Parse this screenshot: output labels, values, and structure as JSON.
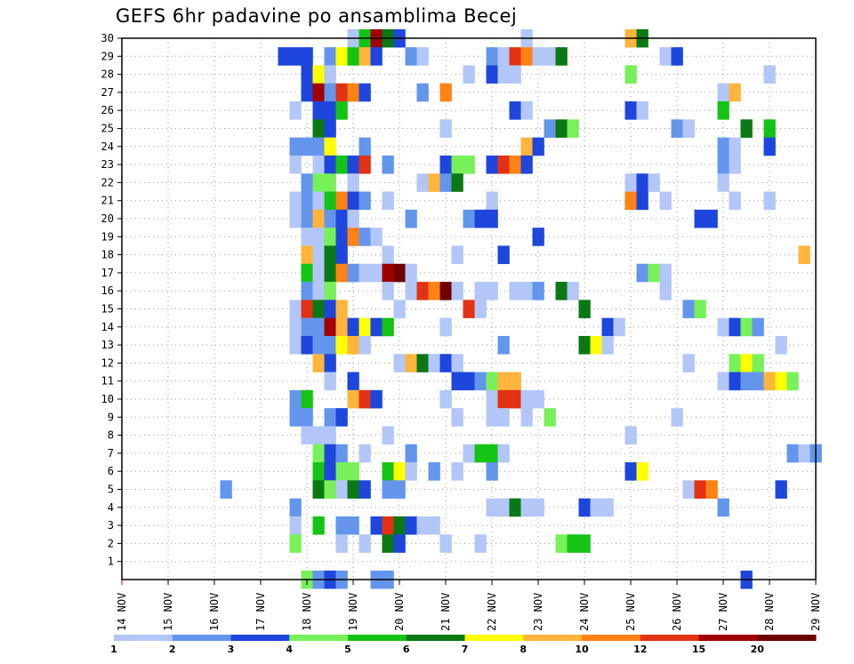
{
  "chart_data": {
    "type": "heatmap",
    "title": "GEFS 6hr padavine po ansamblima Becej",
    "x_tick_labels": [
      "14 NOV",
      "15 NOV",
      "16 NOV",
      "17 NOV",
      "18 NOV",
      "19 NOV",
      "20 NOV",
      "21 NOV",
      "22 NOV",
      "23 NOV",
      "24 NOV",
      "25 NOV",
      "26 NOV",
      "27 NOV",
      "28 NOV",
      "29 NOV"
    ],
    "y_tick_labels": [
      "1",
      "2",
      "3",
      "4",
      "5",
      "6",
      "7",
      "8",
      "9",
      "10",
      "11",
      "12",
      "13",
      "14",
      "15",
      "16",
      "17",
      "18",
      "19",
      "20",
      "21",
      "22",
      "23",
      "24",
      "25",
      "26",
      "27",
      "28",
      "29",
      "30"
    ],
    "x_range_days": [
      14,
      29
    ],
    "y_range_members": [
      0,
      30
    ],
    "x_step_hours": 6,
    "grid": "dotted",
    "colorbar": {
      "labels": [
        "1",
        "2",
        "3",
        "4",
        "5",
        "6",
        "7",
        "8",
        "10",
        "12",
        "15",
        "20"
      ],
      "colors": [
        "#b3c6f8",
        "#6495ed",
        "#1e46dc",
        "#78f05a",
        "#14c314",
        "#0a7814",
        "#ffff00",
        "#ffb43c",
        "#ff8214",
        "#e13214",
        "#a00000",
        "#6e0000"
      ]
    },
    "cells": [
      [
        30,
        19.0,
        0
      ],
      [
        30,
        19.25,
        4
      ],
      [
        30,
        19.5,
        10
      ],
      [
        30,
        19.75,
        5
      ],
      [
        30,
        20.0,
        2
      ],
      [
        30,
        22.75,
        0
      ],
      [
        30,
        25.0,
        7
      ],
      [
        30,
        25.25,
        5
      ],
      [
        29,
        17.5,
        2
      ],
      [
        29,
        17.75,
        2
      ],
      [
        29,
        18.0,
        2
      ],
      [
        29,
        18.5,
        1
      ],
      [
        29,
        18.75,
        6
      ],
      [
        29,
        19.0,
        4
      ],
      [
        29,
        19.25,
        7
      ],
      [
        29,
        19.5,
        2
      ],
      [
        29,
        20.25,
        1
      ],
      [
        29,
        20.5,
        0
      ],
      [
        29,
        22.0,
        1
      ],
      [
        29,
        22.25,
        0
      ],
      [
        29,
        22.5,
        9
      ],
      [
        29,
        22.75,
        8
      ],
      [
        29,
        23.0,
        0
      ],
      [
        29,
        23.25,
        0
      ],
      [
        29,
        23.5,
        5
      ],
      [
        29,
        25.75,
        0
      ],
      [
        29,
        26.0,
        2
      ],
      [
        28,
        18.0,
        2
      ],
      [
        28,
        18.25,
        6
      ],
      [
        28,
        18.5,
        0
      ],
      [
        28,
        21.5,
        0
      ],
      [
        28,
        22.0,
        2
      ],
      [
        28,
        22.25,
        0
      ],
      [
        28,
        22.5,
        0
      ],
      [
        28,
        25.0,
        3
      ],
      [
        28,
        28.0,
        0
      ],
      [
        27,
        18.0,
        2
      ],
      [
        27,
        18.25,
        10
      ],
      [
        27,
        18.5,
        1
      ],
      [
        27,
        18.75,
        9
      ],
      [
        27,
        19.0,
        8
      ],
      [
        27,
        19.25,
        2
      ],
      [
        27,
        20.5,
        1
      ],
      [
        27,
        21.0,
        8
      ],
      [
        27,
        27.0,
        0
      ],
      [
        27,
        27.25,
        7
      ],
      [
        26,
        17.75,
        0
      ],
      [
        26,
        18.25,
        2
      ],
      [
        26,
        18.5,
        2
      ],
      [
        26,
        18.75,
        4
      ],
      [
        26,
        22.5,
        2
      ],
      [
        26,
        22.75,
        0
      ],
      [
        26,
        25.0,
        2
      ],
      [
        26,
        25.25,
        0
      ],
      [
        26,
        27.0,
        4
      ],
      [
        25,
        18.25,
        5
      ],
      [
        25,
        18.5,
        2
      ],
      [
        25,
        21.0,
        0
      ],
      [
        25,
        23.25,
        1
      ],
      [
        25,
        23.5,
        5
      ],
      [
        25,
        23.75,
        3
      ],
      [
        25,
        26.0,
        1
      ],
      [
        25,
        26.25,
        0
      ],
      [
        25,
        27.5,
        5
      ],
      [
        25,
        28.0,
        4
      ],
      [
        24,
        17.75,
        1
      ],
      [
        24,
        18.0,
        1
      ],
      [
        24,
        18.25,
        1
      ],
      [
        24,
        18.5,
        6
      ],
      [
        24,
        19.25,
        1
      ],
      [
        24,
        22.75,
        7
      ],
      [
        24,
        23.0,
        2
      ],
      [
        24,
        27.0,
        1
      ],
      [
        24,
        27.25,
        0
      ],
      [
        24,
        28.0,
        2
      ],
      [
        23,
        17.75,
        0
      ],
      [
        23,
        18.25,
        0
      ],
      [
        23,
        18.5,
        2
      ],
      [
        23,
        18.75,
        4
      ],
      [
        23,
        19.0,
        2
      ],
      [
        23,
        19.25,
        9
      ],
      [
        23,
        19.75,
        1
      ],
      [
        23,
        21.0,
        2
      ],
      [
        23,
        21.25,
        3
      ],
      [
        23,
        21.5,
        3
      ],
      [
        23,
        22.0,
        2
      ],
      [
        23,
        22.25,
        9
      ],
      [
        23,
        22.5,
        8
      ],
      [
        23,
        22.75,
        2
      ],
      [
        23,
        27.0,
        1
      ],
      [
        23,
        27.25,
        0
      ],
      [
        22,
        18.0,
        1
      ],
      [
        22,
        18.25,
        3
      ],
      [
        22,
        18.5,
        3
      ],
      [
        22,
        19.0,
        0
      ],
      [
        22,
        20.5,
        0
      ],
      [
        22,
        20.75,
        7
      ],
      [
        22,
        21.0,
        1
      ],
      [
        22,
        21.25,
        5
      ],
      [
        22,
        25.0,
        0
      ],
      [
        22,
        25.25,
        2
      ],
      [
        22,
        25.5,
        0
      ],
      [
        22,
        27.0,
        0
      ],
      [
        21,
        17.75,
        0
      ],
      [
        21,
        18.0,
        1
      ],
      [
        21,
        18.25,
        0
      ],
      [
        21,
        18.5,
        4
      ],
      [
        21,
        18.75,
        8
      ],
      [
        21,
        19.0,
        2
      ],
      [
        21,
        19.25,
        1
      ],
      [
        21,
        19.75,
        0
      ],
      [
        21,
        22.0,
        0
      ],
      [
        21,
        25.0,
        8
      ],
      [
        21,
        25.25,
        2
      ],
      [
        21,
        25.75,
        0
      ],
      [
        21,
        27.25,
        0
      ],
      [
        21,
        28.0,
        0
      ],
      [
        20,
        17.75,
        0
      ],
      [
        20,
        18.0,
        1
      ],
      [
        20,
        18.25,
        7
      ],
      [
        20,
        18.5,
        1
      ],
      [
        20,
        18.75,
        2
      ],
      [
        20,
        19.0,
        0
      ],
      [
        20,
        20.25,
        1
      ],
      [
        20,
        21.5,
        1
      ],
      [
        20,
        21.75,
        2
      ],
      [
        20,
        22.0,
        2
      ],
      [
        20,
        26.5,
        2
      ],
      [
        20,
        26.75,
        2
      ],
      [
        19,
        18.0,
        0
      ],
      [
        19,
        18.25,
        0
      ],
      [
        19,
        18.5,
        3
      ],
      [
        19,
        18.75,
        2
      ],
      [
        19,
        19.0,
        8
      ],
      [
        19,
        19.25,
        1
      ],
      [
        19,
        19.5,
        0
      ],
      [
        19,
        23.0,
        2
      ],
      [
        18,
        18.0,
        7
      ],
      [
        18,
        18.25,
        0
      ],
      [
        18,
        18.5,
        5
      ],
      [
        18,
        18.75,
        2
      ],
      [
        18,
        19.75,
        0
      ],
      [
        18,
        21.25,
        0
      ],
      [
        18,
        22.25,
        2
      ],
      [
        18,
        28.75,
        7
      ],
      [
        17,
        18.0,
        4
      ],
      [
        17,
        18.25,
        0
      ],
      [
        17,
        18.5,
        5
      ],
      [
        17,
        18.75,
        8
      ],
      [
        17,
        19.0,
        1
      ],
      [
        17,
        19.25,
        0
      ],
      [
        17,
        19.5,
        0
      ],
      [
        17,
        19.75,
        10
      ],
      [
        17,
        20.0,
        11
      ],
      [
        17,
        20.25,
        0
      ],
      [
        17,
        25.25,
        1
      ],
      [
        17,
        25.5,
        3
      ],
      [
        17,
        25.75,
        0
      ],
      [
        16,
        18.0,
        1
      ],
      [
        16,
        18.25,
        0
      ],
      [
        16,
        18.5,
        3
      ],
      [
        16,
        19.75,
        0
      ],
      [
        16,
        20.25,
        0
      ],
      [
        16,
        20.5,
        9
      ],
      [
        16,
        20.75,
        8
      ],
      [
        16,
        21.0,
        11
      ],
      [
        16,
        21.25,
        0
      ],
      [
        16,
        21.75,
        0
      ],
      [
        16,
        22.0,
        0
      ],
      [
        16,
        22.5,
        0
      ],
      [
        16,
        22.75,
        0
      ],
      [
        16,
        23.0,
        1
      ],
      [
        16,
        23.5,
        5
      ],
      [
        16,
        23.75,
        0
      ],
      [
        16,
        25.75,
        0
      ],
      [
        15,
        17.75,
        0
      ],
      [
        15,
        18.0,
        9
      ],
      [
        15,
        18.25,
        5
      ],
      [
        15,
        18.5,
        2
      ],
      [
        15,
        18.75,
        7
      ],
      [
        15,
        20.0,
        0
      ],
      [
        15,
        21.5,
        9
      ],
      [
        15,
        21.75,
        0
      ],
      [
        15,
        24.0,
        5
      ],
      [
        15,
        26.25,
        1
      ],
      [
        15,
        26.5,
        3
      ],
      [
        14,
        17.75,
        0
      ],
      [
        14,
        18.0,
        1
      ],
      [
        14,
        18.25,
        1
      ],
      [
        14,
        18.5,
        10
      ],
      [
        14,
        18.75,
        7
      ],
      [
        14,
        19.0,
        2
      ],
      [
        14,
        19.25,
        6
      ],
      [
        14,
        19.5,
        2
      ],
      [
        14,
        19.75,
        4
      ],
      [
        14,
        21.0,
        0
      ],
      [
        14,
        24.5,
        2
      ],
      [
        14,
        24.75,
        0
      ],
      [
        14,
        27.0,
        0
      ],
      [
        14,
        27.25,
        2
      ],
      [
        14,
        27.5,
        3
      ],
      [
        14,
        27.75,
        1
      ],
      [
        13,
        17.75,
        0
      ],
      [
        13,
        18.0,
        2
      ],
      [
        13,
        18.25,
        1
      ],
      [
        13,
        18.5,
        1
      ],
      [
        13,
        18.75,
        6
      ],
      [
        13,
        19.0,
        7
      ],
      [
        13,
        19.25,
        0
      ],
      [
        13,
        22.25,
        1
      ],
      [
        13,
        24.0,
        5
      ],
      [
        13,
        24.25,
        6
      ],
      [
        13,
        24.5,
        0
      ],
      [
        13,
        28.25,
        0
      ],
      [
        12,
        18.25,
        7
      ],
      [
        12,
        18.5,
        2
      ],
      [
        12,
        20.0,
        0
      ],
      [
        12,
        20.25,
        7
      ],
      [
        12,
        20.5,
        5
      ],
      [
        12,
        20.75,
        0
      ],
      [
        12,
        21.0,
        2
      ],
      [
        12,
        21.25,
        0
      ],
      [
        12,
        26.25,
        0
      ],
      [
        12,
        27.25,
        3
      ],
      [
        12,
        27.5,
        6
      ],
      [
        12,
        27.75,
        3
      ],
      [
        11,
        18.5,
        0
      ],
      [
        11,
        19.0,
        2
      ],
      [
        11,
        21.25,
        2
      ],
      [
        11,
        21.5,
        2
      ],
      [
        11,
        21.75,
        1
      ],
      [
        11,
        22.0,
        3
      ],
      [
        11,
        22.25,
        7
      ],
      [
        11,
        22.5,
        7
      ],
      [
        11,
        27.0,
        0
      ],
      [
        11,
        27.25,
        2
      ],
      [
        11,
        27.5,
        1
      ],
      [
        11,
        27.75,
        1
      ],
      [
        11,
        28.0,
        7
      ],
      [
        11,
        28.25,
        6
      ],
      [
        11,
        28.5,
        3
      ],
      [
        10,
        17.75,
        1
      ],
      [
        10,
        18.0,
        4
      ],
      [
        10,
        19.0,
        7
      ],
      [
        10,
        19.25,
        9
      ],
      [
        10,
        19.5,
        2
      ],
      [
        10,
        21.0,
        0
      ],
      [
        10,
        22.0,
        0
      ],
      [
        10,
        22.25,
        9
      ],
      [
        10,
        22.5,
        9
      ],
      [
        10,
        22.75,
        0
      ],
      [
        10,
        23.0,
        0
      ],
      [
        9,
        17.75,
        1
      ],
      [
        9,
        18.0,
        1
      ],
      [
        9,
        18.5,
        1
      ],
      [
        9,
        18.75,
        2
      ],
      [
        9,
        21.25,
        0
      ],
      [
        9,
        22.0,
        0
      ],
      [
        9,
        22.25,
        0
      ],
      [
        9,
        22.75,
        0
      ],
      [
        9,
        23.25,
        3
      ],
      [
        9,
        26.0,
        0
      ],
      [
        8,
        18.0,
        0
      ],
      [
        8,
        18.25,
        0
      ],
      [
        8,
        18.5,
        0
      ],
      [
        8,
        19.75,
        0
      ],
      [
        8,
        25.0,
        0
      ],
      [
        7,
        18.25,
        3
      ],
      [
        7,
        18.5,
        2
      ],
      [
        7,
        18.75,
        1
      ],
      [
        7,
        19.25,
        0
      ],
      [
        7,
        20.25,
        1
      ],
      [
        7,
        21.5,
        0
      ],
      [
        7,
        21.75,
        4
      ],
      [
        7,
        22.0,
        4
      ],
      [
        7,
        22.25,
        0
      ],
      [
        7,
        28.5,
        1
      ],
      [
        7,
        28.75,
        0
      ],
      [
        7,
        29.0,
        1
      ],
      [
        6,
        18.25,
        4
      ],
      [
        6,
        18.5,
        2
      ],
      [
        6,
        18.75,
        3
      ],
      [
        6,
        19.0,
        3
      ],
      [
        6,
        19.75,
        4
      ],
      [
        6,
        20.0,
        6
      ],
      [
        6,
        20.25,
        0
      ],
      [
        6,
        20.75,
        1
      ],
      [
        6,
        21.25,
        0
      ],
      [
        6,
        22.0,
        1
      ],
      [
        6,
        25.0,
        2
      ],
      [
        6,
        25.25,
        6
      ],
      [
        5,
        16.25,
        1
      ],
      [
        5,
        18.25,
        5
      ],
      [
        5,
        18.5,
        3
      ],
      [
        5,
        18.75,
        0
      ],
      [
        5,
        19.0,
        5
      ],
      [
        5,
        19.25,
        2
      ],
      [
        5,
        19.75,
        1
      ],
      [
        5,
        20.0,
        1
      ],
      [
        5,
        26.25,
        0
      ],
      [
        5,
        26.5,
        9
      ],
      [
        5,
        26.75,
        8
      ],
      [
        5,
        28.25,
        2
      ],
      [
        4,
        17.75,
        1
      ],
      [
        4,
        22.0,
        0
      ],
      [
        4,
        22.25,
        0
      ],
      [
        4,
        22.5,
        5
      ],
      [
        4,
        22.75,
        0
      ],
      [
        4,
        23.0,
        0
      ],
      [
        4,
        24.0,
        2
      ],
      [
        4,
        24.25,
        0
      ],
      [
        4,
        24.5,
        0
      ],
      [
        4,
        27.0,
        1
      ],
      [
        3,
        17.75,
        0
      ],
      [
        3,
        18.25,
        4
      ],
      [
        3,
        18.75,
        1
      ],
      [
        3,
        19.0,
        1
      ],
      [
        3,
        19.5,
        2
      ],
      [
        3,
        19.75,
        9
      ],
      [
        3,
        20.0,
        5
      ],
      [
        3,
        20.25,
        2
      ],
      [
        3,
        20.5,
        0
      ],
      [
        3,
        20.75,
        0
      ],
      [
        2,
        17.75,
        3
      ],
      [
        2,
        18.75,
        0
      ],
      [
        2,
        19.25,
        0
      ],
      [
        2,
        19.75,
        5
      ],
      [
        2,
        20.0,
        2
      ],
      [
        2,
        21.0,
        0
      ],
      [
        2,
        21.75,
        0
      ],
      [
        2,
        23.5,
        3
      ],
      [
        2,
        23.75,
        4
      ],
      [
        2,
        24.0,
        4
      ],
      [
        0,
        18.0,
        3
      ],
      [
        0,
        18.25,
        1
      ],
      [
        0,
        18.5,
        2
      ],
      [
        0,
        18.75,
        1
      ],
      [
        0,
        19.5,
        1
      ],
      [
        0,
        19.75,
        1
      ],
      [
        0,
        27.5,
        2
      ]
    ]
  }
}
